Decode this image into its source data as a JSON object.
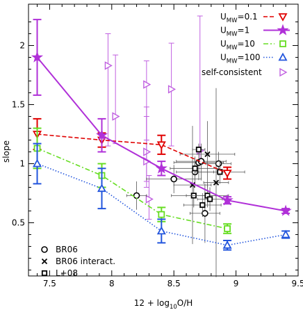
{
  "chart_data": {
    "type": "scatter",
    "xlabel": "12 + log10O/H",
    "ylabel": "slope",
    "xlim": [
      7.33,
      9.5
    ],
    "ylim": [
      0.05,
      2.35
    ],
    "x_ticks": [
      "7.5",
      "8",
      "8.5",
      "9",
      "9.5"
    ],
    "x_tick_values": [
      7.5,
      8,
      8.5,
      9,
      9.5
    ],
    "y_ticks": [
      "0.5",
      "1",
      "1.5",
      "2"
    ],
    "y_tick_values": [
      0.5,
      1,
      1.5,
      2
    ],
    "model_series": [
      {
        "name": "U_MW=0.1",
        "label_main": "U",
        "label_sub": "MW",
        "label_tail": "=0.1",
        "color": "#e00000",
        "marker": "triangle-down",
        "line": "dashed",
        "x": [
          7.4,
          7.92,
          8.4,
          8.93
        ],
        "y": [
          1.25,
          1.2,
          1.16,
          0.92
        ],
        "yerr": [
          0.13,
          0.06,
          0.08,
          0.05
        ]
      },
      {
        "name": "U_MW=1",
        "label_main": "U",
        "label_sub": "MW",
        "label_tail": "=1",
        "color": "#b030d8",
        "marker": "star",
        "line": "solid",
        "x": [
          7.4,
          7.92,
          8.4,
          8.93,
          9.4
        ],
        "y": [
          1.9,
          1.24,
          0.96,
          0.69,
          0.6
        ],
        "yerr": [
          0.32,
          0.14,
          0.06,
          0.03,
          0.02
        ]
      },
      {
        "name": "U_MW=10",
        "label_main": "U",
        "label_sub": "MW",
        "label_tail": "=10",
        "color": "#66dd22",
        "marker": "square",
        "line": "dashdot",
        "x": [
          7.4,
          7.92,
          8.4,
          8.93
        ],
        "y": [
          1.13,
          0.9,
          0.57,
          0.45
        ],
        "yerr": [
          0.17,
          0.1,
          0.06,
          0.04
        ]
      },
      {
        "name": "U_MW=100",
        "label_main": "U",
        "label_sub": "MW",
        "label_tail": "=100",
        "color": "#2255dd",
        "marker": "triangle-up",
        "line": "dotted",
        "x": [
          7.4,
          7.92,
          8.4,
          8.93,
          9.4
        ],
        "y": [
          1.0,
          0.79,
          0.43,
          0.31,
          0.4
        ],
        "yerr": [
          0.17,
          0.17,
          0.1,
          0.04,
          0.03
        ]
      }
    ],
    "self_consistent": {
      "name": "self-consistent",
      "color": "#c060e0",
      "marker": "triangle-right",
      "points": [
        {
          "x": 7.97,
          "y": 1.83,
          "ylo": 1.15,
          "yhi": 2.1
        },
        {
          "x": 8.03,
          "y": 1.4,
          "ylo": 1.17,
          "yhi": 1.92
        },
        {
          "x": 8.28,
          "y": 1.67,
          "ylo": 1.2,
          "yhi": 1.87
        },
        {
          "x": 8.28,
          "y": 1.1,
          "ylo": 0.85,
          "yhi": 1.48
        },
        {
          "x": 8.28,
          "y": 1.02,
          "ylo": 0.8,
          "yhi": 1.4
        },
        {
          "x": 8.3,
          "y": 0.7,
          "ylo": 0.53,
          "yhi": 0.9
        },
        {
          "x": 8.48,
          "y": 1.63,
          "ylo": 1.15,
          "yhi": 2.02
        },
        {
          "x": 8.71,
          "y": 1.11,
          "ylo": 1.02,
          "yhi": 2.25
        }
      ]
    },
    "observations": [
      {
        "name": "BR06",
        "marker": "circle",
        "points": [
          {
            "x": 8.2,
            "y": 0.73,
            "xerr": 0.08,
            "yerr": 0.12
          },
          {
            "x": 8.5,
            "y": 0.87,
            "xerr": 0.22,
            "yerr": 0.12
          },
          {
            "x": 8.67,
            "y": 0.93,
            "xerr": 0.15,
            "yerr": 0.12
          },
          {
            "x": 8.7,
            "y": 1.01,
            "xerr": 0.2,
            "yerr": 0.15
          },
          {
            "x": 8.72,
            "y": 1.02,
            "xerr": 0.2,
            "yerr": 0.15
          },
          {
            "x": 8.75,
            "y": 0.58,
            "xerr": 0.12,
            "yerr": 0.25
          },
          {
            "x": 8.86,
            "y": 1.0,
            "xerr": 0.1,
            "yerr": 0.1
          }
        ]
      },
      {
        "name": "BR06 interact.",
        "marker": "cross",
        "points": [
          {
            "x": 8.65,
            "y": 0.82,
            "xerr": 0.15,
            "yerr": 0.5
          },
          {
            "x": 8.77,
            "y": 1.08,
            "xerr": 0.22,
            "yerr": 0.28
          },
          {
            "x": 8.84,
            "y": 0.84,
            "xerr": 0.1,
            "yerr": 0.8
          }
        ]
      },
      {
        "name": "L+08",
        "marker": "square",
        "points": [
          {
            "x": 8.66,
            "y": 0.73,
            "xerr": 0.18,
            "yerr": 0.1
          },
          {
            "x": 8.67,
            "y": 0.96,
            "xerr": 0.2,
            "yerr": 0.1
          },
          {
            "x": 8.7,
            "y": 1.12,
            "xerr": 0.05,
            "yerr": 0.05
          },
          {
            "x": 8.73,
            "y": 0.65,
            "xerr": 0.15,
            "yerr": 0.1
          },
          {
            "x": 8.77,
            "y": 0.73,
            "xerr": 0.17,
            "yerr": 0.1
          },
          {
            "x": 8.79,
            "y": 0.7,
            "xerr": 0.1,
            "yerr": 0.1
          },
          {
            "x": 8.87,
            "y": 0.93,
            "xerr": 0.2,
            "yerr": 0.1
          }
        ]
      }
    ],
    "legend_top_right": [
      "U_MW=0.1",
      "U_MW=1",
      "U_MW=10",
      "U_MW=100",
      "self-consistent"
    ],
    "legend_bottom_left": [
      "BR06",
      "BR06 interact.",
      "L+08"
    ]
  }
}
